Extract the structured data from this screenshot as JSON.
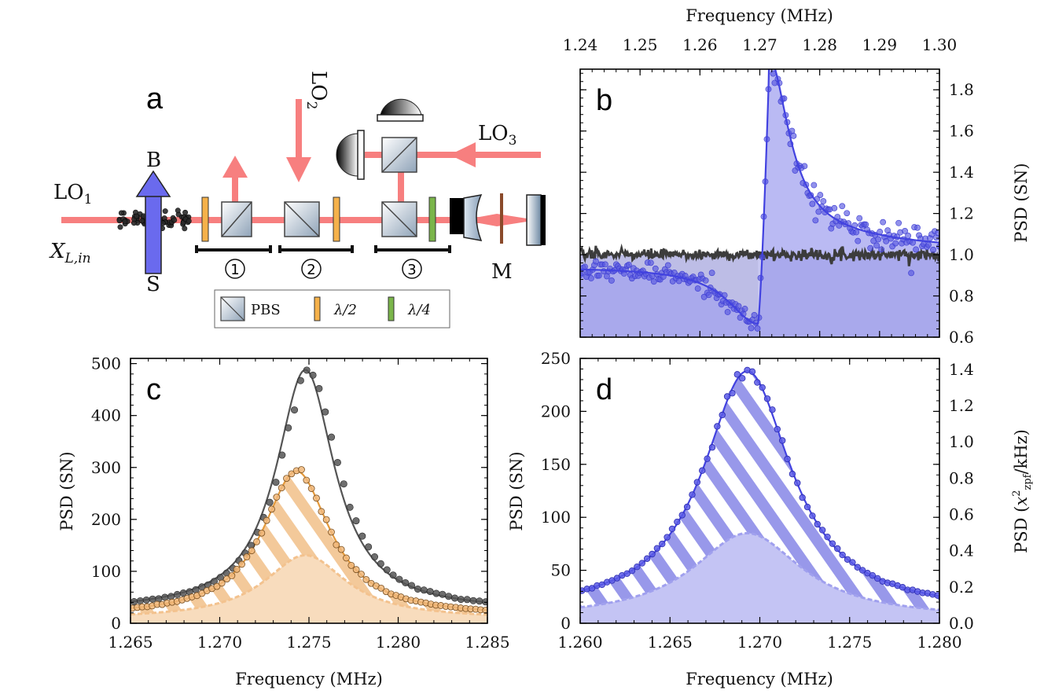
{
  "panel_letters": {
    "a": "a",
    "b": "b",
    "c": "c",
    "d": "d"
  },
  "setup": {
    "lo1_label": "LO",
    "lo1_sub": "1",
    "lo2_label": "LO",
    "lo2_sub": "2",
    "lo3_label": "LO",
    "lo3_sub": "3",
    "b_label": "B",
    "s_label": "S",
    "m_label": "M",
    "xl_label": "X",
    "xl_sub": "L,in",
    "circle_labels": [
      "1",
      "2",
      "3"
    ],
    "legend": {
      "pbs": "PBS",
      "hwp": "λ/2",
      "qwp": "λ/4"
    }
  },
  "colors": {
    "beam": "#f77f7f",
    "blue": "#4242e0",
    "blue_light": "#b6b6f2",
    "orange": "#e49a3c",
    "orange_light": "#f3c99a",
    "gray": "#3c3c3c",
    "hwp": "#f5b14a",
    "qwp": "#7ab54a"
  },
  "chart_data": [
    {
      "id": "b",
      "type": "scatter",
      "title": "",
      "xlabel": "Frequency (MHz)",
      "xlabel_position": "top",
      "ylabel": "PSD (SN)",
      "ylabel_position": "right",
      "xlim": [
        1.24,
        1.3
      ],
      "ylim": [
        0.6,
        1.9
      ],
      "xticks": [
        "1.24",
        "1.25",
        "1.26",
        "1.27",
        "1.28",
        "1.29",
        "1.30"
      ],
      "yticks": [
        "0.6",
        "0.8",
        "1.0",
        "1.2",
        "1.4",
        "1.6",
        "1.8"
      ],
      "series": [
        {
          "name": "shot noise (gray)",
          "kind": "noisy-trace",
          "level": 1.0
        },
        {
          "name": "measured (blue points)",
          "kind": "points"
        },
        {
          "name": "fit (blue line)",
          "kind": "line",
          "model": "Fano-like dispersive resonance",
          "f0": 1.2715,
          "min": 0.665,
          "max": 1.85
        }
      ]
    },
    {
      "id": "c",
      "type": "scatter",
      "xlabel": "Frequency (MHz)",
      "ylabel": "PSD (SN)",
      "xlim": [
        1.265,
        1.285
      ],
      "ylim": [
        0,
        510
      ],
      "xticks": [
        "1.265",
        "1.270",
        "1.275",
        "1.280",
        "1.285"
      ],
      "yticks": [
        "0",
        "100",
        "200",
        "300",
        "400",
        "500"
      ],
      "series": [
        {
          "name": "gray",
          "f0": 1.2748,
          "peak": 488,
          "half_width_MHz": 0.002,
          "base": 23
        },
        {
          "name": "orange",
          "f0": 1.2743,
          "peak": 293,
          "half_width_MHz": 0.0023,
          "base": 13
        },
        {
          "name": "orange filled",
          "f0": 1.2748,
          "peak": 131,
          "half_width_MHz": 0.0028,
          "base": 8
        }
      ]
    },
    {
      "id": "d",
      "type": "scatter",
      "xlabel": "Frequency (MHz)",
      "ylabel": "PSD (SN)",
      "ylabel_right": "PSD (x²zpf/kHz)",
      "xlim": [
        1.26,
        1.28
      ],
      "ylim": [
        0,
        250
      ],
      "ylim_right": [
        0,
        1.46
      ],
      "xticks": [
        "1.260",
        "1.265",
        "1.270",
        "1.275",
        "1.280"
      ],
      "yticks": [
        "0",
        "50",
        "100",
        "150",
        "200",
        "250"
      ],
      "yticks_right": [
        "0.0",
        "0.2",
        "0.4",
        "0.6",
        "0.8",
        "1.0",
        "1.2",
        "1.4"
      ],
      "series": [
        {
          "name": "blue",
          "f0": 1.2693,
          "peak": 238,
          "half_width_MHz": 0.003,
          "base": 9
        },
        {
          "name": "blue filled",
          "f0": 1.2693,
          "peak": 85,
          "half_width_MHz": 0.0037,
          "base": 4
        }
      ]
    }
  ]
}
